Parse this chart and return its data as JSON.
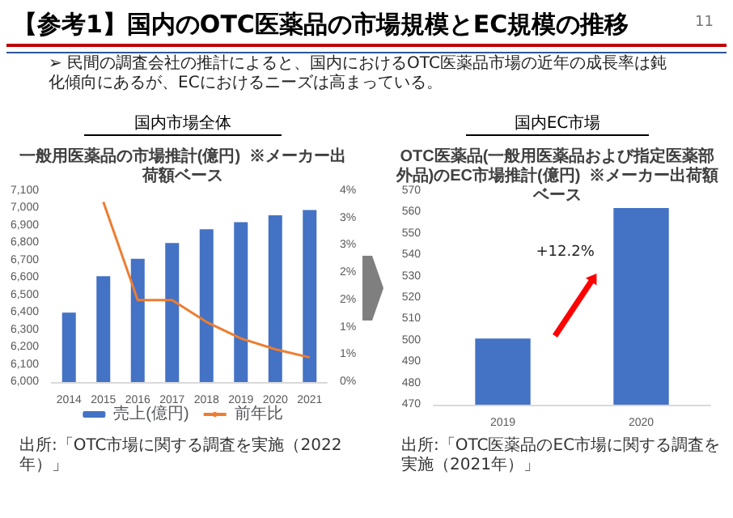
{
  "chart_data": [
    {
      "type": "other",
      "title": "【参考1】国内のOTC医薬品の市場規模とEC規模の推移",
      "annotations": [
        "11",
        "➢ 民間の調査会社の推計によると、国内におけるOTC医薬品市場の近年の成長率は鈍化傾向にあるが、ECにおけるニーズは高まっている。"
      ]
    },
    {
      "type": "bar",
      "subtitle": "国内市場全体",
      "title": "一般用医薬品の市場推計(億円)  ※メーカー出荷額ベース",
      "categories": [
        "2014",
        "2015",
        "2016",
        "2017",
        "2018",
        "2019",
        "2020",
        "2021"
      ],
      "series": [
        {
          "name": "売上(億円)",
          "color": "#4472c4",
          "values": [
            6400,
            6610,
            6710,
            6800,
            6880,
            6920,
            6960,
            6990
          ]
        },
        {
          "name": "前年比",
          "type": "line",
          "axis": "y2",
          "color": "#ed7d31",
          "values": [
            null,
            3.3,
            1.5,
            1.5,
            1.1,
            0.8,
            0.6,
            0.45
          ]
        }
      ],
      "ylim": [
        6000,
        7100
      ],
      "yticks": [
        {
          "value": 6000,
          "label": "6,000"
        },
        {
          "value": 6100,
          "label": "6,100"
        },
        {
          "value": 6200,
          "label": "6,200"
        },
        {
          "value": 6300,
          "label": "6,300"
        },
        {
          "value": 6400,
          "label": "6,400"
        },
        {
          "value": 6500,
          "label": "6,500"
        },
        {
          "value": 6600,
          "label": "6,600"
        },
        {
          "value": 6700,
          "label": "6,700"
        },
        {
          "value": 6800,
          "label": "6,800"
        },
        {
          "value": 6900,
          "label": "6,900"
        },
        {
          "value": 7000,
          "label": "7,000"
        },
        {
          "value": 7100,
          "label": "7,100"
        }
      ],
      "y2lim": [
        0,
        3.5
      ],
      "y2ticks": [
        {
          "value": 0,
          "label": "0%"
        },
        {
          "value": 0.5,
          "label": "1%"
        },
        {
          "value": 1,
          "label": "1%"
        },
        {
          "value": 1.5,
          "label": "2%"
        },
        {
          "value": 2,
          "label": "2%"
        },
        {
          "value": 2.5,
          "label": "3%"
        },
        {
          "value": 3,
          "label": "3%"
        },
        {
          "value": 3.5,
          "label": "4%"
        }
      ],
      "legend": "bottom",
      "marker": "none",
      "annotations": [
        "出所:「OTC市場に関する調査を実施（2022年）」"
      ]
    },
    {
      "type": "bar",
      "subtitle": "国内EC市場",
      "title": "OTC医薬品(一般用医薬品および指定医薬部外品)のEC市場推計(億円)  ※メーカー出荷額ベース",
      "categories": [
        "2019",
        "2020"
      ],
      "values": [
        501,
        562
      ],
      "color": "#4472c4",
      "ylim": [
        470,
        570
      ],
      "yticks": [
        470,
        480,
        490,
        500,
        510,
        520,
        530,
        540,
        550,
        560,
        570
      ],
      "annotations": [
        "+12.2%",
        "出所:「OTC医薬品のEC市場に関する調査を実施（2021年）」"
      ]
    }
  ]
}
